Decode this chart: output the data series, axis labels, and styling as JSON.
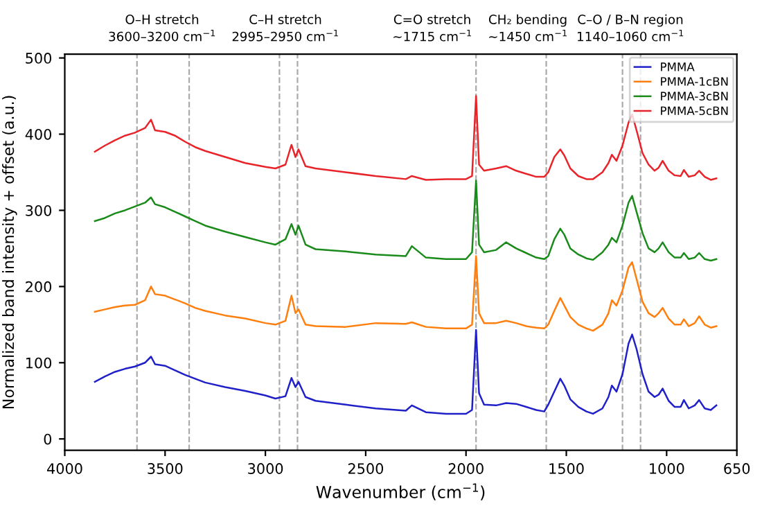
{
  "chart_data": {
    "type": "line",
    "xlabel": "Wavenumber (cm$^{−1}$)",
    "ylabel": "Normalized band intensity + offset (a.u.)",
    "x": [
      3850,
      3800,
      3750,
      3700,
      3650,
      3600,
      3570,
      3550,
      3500,
      3450,
      3400,
      3350,
      3300,
      3200,
      3100,
      3000,
      2950,
      2900,
      2870,
      2850,
      2835,
      2800,
      2750,
      2600,
      2450,
      2300,
      2270,
      2200,
      2100,
      2000,
      1970,
      1950,
      1935,
      1910,
      1850,
      1800,
      1750,
      1700,
      1650,
      1610,
      1590,
      1560,
      1530,
      1510,
      1480,
      1440,
      1400,
      1367,
      1320,
      1290,
      1273,
      1250,
      1220,
      1190,
      1172,
      1150,
      1120,
      1090,
      1060,
      1040,
      1020,
      990,
      960,
      930,
      914,
      890,
      860,
      838,
      810,
      780,
      752
    ],
    "series": [
      {
        "name": "PMMA",
        "color": "#2020c8",
        "values": [
          75,
          82,
          88,
          92,
          95,
          100,
          108,
          98,
          96,
          90,
          84,
          79,
          74,
          68,
          63,
          57,
          53,
          56,
          80,
          68,
          75,
          55,
          50,
          45,
          40,
          37,
          44,
          35,
          33,
          33,
          38,
          143,
          60,
          45,
          44,
          47,
          46,
          42,
          38,
          36,
          45,
          62,
          79,
          70,
          52,
          42,
          36,
          33,
          40,
          55,
          70,
          62,
          85,
          125,
          137,
          118,
          85,
          62,
          55,
          58,
          66,
          50,
          42,
          42,
          51,
          40,
          44,
          51,
          40,
          38,
          44
        ]
      },
      {
        "name": "PMMA-1cBN",
        "color": "#ff7f0e",
        "values": [
          167,
          170,
          173,
          175,
          176,
          182,
          200,
          190,
          188,
          183,
          178,
          172,
          168,
          162,
          158,
          152,
          150,
          155,
          188,
          165,
          170,
          150,
          148,
          147,
          152,
          151,
          153,
          147,
          145,
          145,
          150,
          240,
          165,
          152,
          152,
          155,
          152,
          148,
          146,
          145,
          150,
          168,
          185,
          175,
          160,
          150,
          145,
          142,
          150,
          165,
          182,
          175,
          195,
          225,
          232,
          210,
          180,
          165,
          160,
          165,
          172,
          158,
          150,
          150,
          157,
          148,
          152,
          161,
          150,
          146,
          148
        ]
      },
      {
        "name": "PMMA-3cBN",
        "color": "#1a8a1a",
        "values": [
          286,
          290,
          296,
          300,
          305,
          310,
          317,
          308,
          304,
          298,
          292,
          286,
          280,
          272,
          265,
          258,
          255,
          262,
          282,
          268,
          280,
          255,
          249,
          246,
          242,
          240,
          253,
          238,
          236,
          236,
          245,
          339,
          255,
          245,
          248,
          258,
          250,
          244,
          238,
          236,
          240,
          262,
          276,
          268,
          250,
          242,
          237,
          235,
          245,
          255,
          264,
          258,
          280,
          310,
          319,
          298,
          270,
          250,
          245,
          250,
          258,
          245,
          238,
          238,
          244,
          236,
          238,
          244,
          236,
          234,
          236
        ]
      },
      {
        "name": "PMMA-5cBN",
        "color": "#e8242a",
        "values": [
          377,
          385,
          392,
          398,
          402,
          408,
          419,
          405,
          403,
          398,
          390,
          383,
          378,
          370,
          362,
          357,
          355,
          360,
          386,
          370,
          380,
          358,
          355,
          350,
          345,
          341,
          345,
          340,
          341,
          341,
          345,
          450,
          360,
          352,
          355,
          358,
          352,
          348,
          344,
          344,
          350,
          370,
          380,
          372,
          355,
          345,
          341,
          341,
          350,
          362,
          373,
          365,
          385,
          415,
          426,
          405,
          375,
          360,
          352,
          356,
          365,
          352,
          346,
          345,
          353,
          344,
          346,
          352,
          344,
          340,
          342
        ]
      }
    ],
    "xlim": [
      4000,
      650
    ],
    "xticks": [
      4000,
      3500,
      3000,
      2500,
      2000,
      1500,
      1000,
      650
    ],
    "ylim": [
      -15,
      505
    ],
    "yticks": [
      0,
      100,
      200,
      300,
      400,
      500
    ],
    "ref_lines": [
      {
        "axis": "x",
        "value": 3640,
        "color": "#aaaaaa",
        "line_style": "dashed"
      },
      {
        "axis": "x",
        "value": 3380,
        "color": "#aaaaaa",
        "line_style": "dashed"
      },
      {
        "axis": "x",
        "value": 2930,
        "color": "#aaaaaa",
        "line_style": "dashed"
      },
      {
        "axis": "x",
        "value": 2840,
        "color": "#aaaaaa",
        "line_style": "dashed"
      },
      {
        "axis": "x",
        "value": 1950,
        "color": "#aaaaaa",
        "line_style": "dashed"
      },
      {
        "axis": "x",
        "value": 1600,
        "color": "#aaaaaa",
        "line_style": "dashed"
      },
      {
        "axis": "x",
        "value": 1220,
        "color": "#aaaaaa",
        "line_style": "dashed"
      },
      {
        "axis": "x",
        "value": 1130,
        "color": "#aaaaaa",
        "line_style": "dashed"
      }
    ],
    "annotations": [
      "O–H stretch\n3600–3200 cm$^{−1}$",
      "C–H stretch\n2995–2950 cm$^{−1}$",
      "C=O stretch\n~1715 cm$^{−1}$",
      "CH₂ bending\n~1450 cm$^{−1}$",
      "C–O / B–N region\n1140–1060 cm$^{−1}$"
    ],
    "legend": "top right",
    "grid": false,
    "marker": "none",
    "line_style": "solid"
  }
}
